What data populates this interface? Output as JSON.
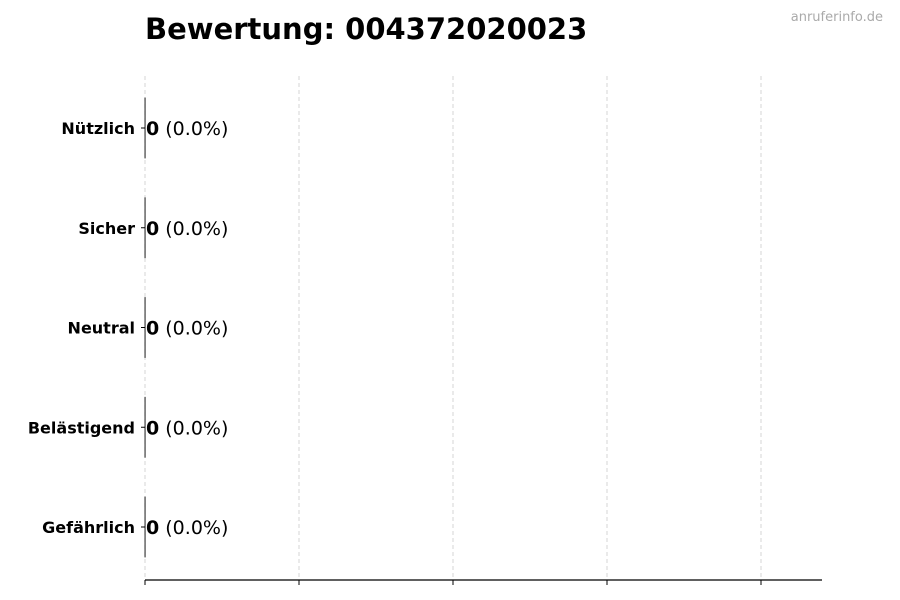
{
  "watermark": "anruferinfo.de",
  "chart_data": {
    "type": "bar",
    "orientation": "horizontal",
    "title": "Bewertung: 004372020023",
    "categories": [
      "Nützlich",
      "Sicher",
      "Neutral",
      "Belästigend",
      "Gefährlich"
    ],
    "values": [
      0,
      0,
      0,
      0,
      0
    ],
    "data_labels": [
      {
        "count": "0",
        "percent": "(0.0%)"
      },
      {
        "count": "0",
        "percent": "(0.0%)"
      },
      {
        "count": "0",
        "percent": "(0.0%)"
      },
      {
        "count": "0",
        "percent": "(0.0%)"
      },
      {
        "count": "0",
        "percent": "(0.0%)"
      }
    ],
    "xlabel": "",
    "ylabel": "",
    "grid": "vertical dashed",
    "x_tick_labels": "none",
    "colors": {
      "grid": "#cccccc",
      "axis": "#000000",
      "bar_edge": "#000000",
      "watermark": "#aaaaaa"
    }
  }
}
